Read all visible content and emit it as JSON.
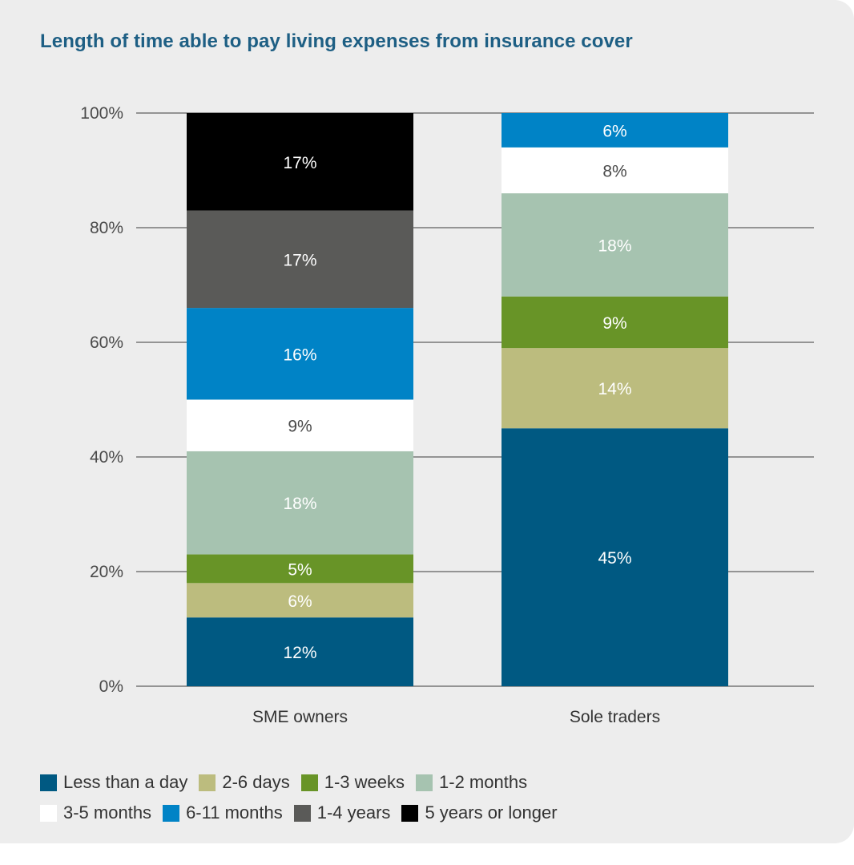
{
  "chart_data": {
    "type": "bar",
    "stacked": true,
    "title": "Length of time able to pay living expenses from insurance cover",
    "categories": [
      "SME owners",
      "Sole traders"
    ],
    "yticks": [
      "0%",
      "20%",
      "40%",
      "60%",
      "80%",
      "100%"
    ],
    "ylim": [
      0,
      100
    ],
    "grid": true,
    "legend_position": "bottom",
    "series": [
      {
        "name": "Less than a day",
        "color": "#005982",
        "label_color": "#ffffff",
        "values": [
          12,
          45
        ],
        "labels": [
          "12%",
          "45%"
        ]
      },
      {
        "name": "2-6 days",
        "color": "#bcbc7e",
        "label_color": "#ffffff",
        "values": [
          6,
          14
        ],
        "labels": [
          "6%",
          "14%"
        ]
      },
      {
        "name": "1-3 weeks",
        "color": "#689427",
        "label_color": "#ffffff",
        "values": [
          5,
          9
        ],
        "labels": [
          "5%",
          "9%"
        ]
      },
      {
        "name": "1-2 months",
        "color": "#a6c3b0",
        "label_color": "#ffffff",
        "values": [
          18,
          18
        ],
        "labels": [
          "18%",
          "18%"
        ]
      },
      {
        "name": "3-5 months",
        "color": "#ffffff",
        "label_color": "#4a4a4a",
        "values": [
          9,
          8
        ],
        "labels": [
          "9%",
          "8%"
        ]
      },
      {
        "name": "6-11 months",
        "color": "#0083c6",
        "label_color": "#ffffff",
        "values": [
          16,
          6
        ],
        "labels": [
          "16%",
          "6%"
        ]
      },
      {
        "name": "1-4 years",
        "color": "#5a5a58",
        "label_color": "#ffffff",
        "values": [
          17,
          0
        ],
        "labels": [
          "17%",
          ""
        ]
      },
      {
        "name": "5 years or longer",
        "color": "#000000",
        "label_color": "#ffffff",
        "values": [
          17,
          0
        ],
        "labels": [
          "17%",
          ""
        ]
      }
    ]
  }
}
